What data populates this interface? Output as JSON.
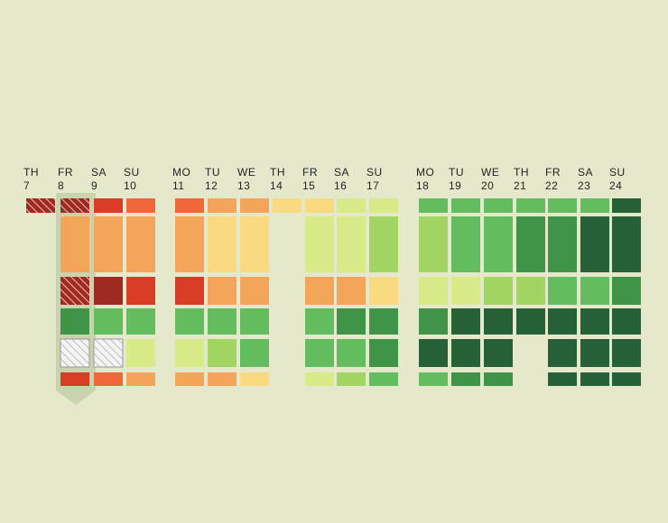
{
  "chart_data": {
    "type": "heatmap",
    "selected_day": "FR 8",
    "days": [
      {
        "dow": "TH",
        "num": "7"
      },
      {
        "dow": "FR",
        "num": "8"
      },
      {
        "dow": "SA",
        "num": "9"
      },
      {
        "dow": "SU",
        "num": "10"
      },
      {
        "dow": "MO",
        "num": "11"
      },
      {
        "dow": "TU",
        "num": "12"
      },
      {
        "dow": "WE",
        "num": "13"
      },
      {
        "dow": "TH",
        "num": "14"
      },
      {
        "dow": "FR",
        "num": "15"
      },
      {
        "dow": "SA",
        "num": "16"
      },
      {
        "dow": "SU",
        "num": "17"
      },
      {
        "dow": "MO",
        "num": "18"
      },
      {
        "dow": "TU",
        "num": "19"
      },
      {
        "dow": "WE",
        "num": "20"
      },
      {
        "dow": "TH",
        "num": "21"
      },
      {
        "dow": "FR",
        "num": "22"
      },
      {
        "dow": "SA",
        "num": "23"
      },
      {
        "dow": "SU",
        "num": "24"
      }
    ],
    "rows": 6,
    "levels": {
      "hatched-red": "#9e2a22",
      "1": "#9e2a22",
      "2": "#d93c25",
      "3": "#f0683a",
      "4": "#f5a55a",
      "5": "#fbd980",
      "6": "#d9ea88",
      "7": "#a1d665",
      "8": "#63bd5e",
      "9": "#3f9447",
      "10": "#276138",
      "hatched-grey": "#f2f2f2"
    },
    "values": [
      [
        "hatched-red",
        "hatched-red",
        2,
        3,
        3,
        4,
        4,
        5,
        5,
        6,
        6,
        8,
        8,
        8,
        8,
        8,
        8,
        10
      ],
      [
        null,
        4,
        4,
        4,
        4,
        5,
        5,
        null,
        6,
        6,
        7,
        7,
        8,
        8,
        9,
        9,
        10,
        10
      ],
      [
        null,
        "hatched-red",
        1,
        2,
        2,
        4,
        4,
        null,
        4,
        4,
        5,
        6,
        6,
        7,
        7,
        8,
        8,
        9
      ],
      [
        null,
        9,
        8,
        8,
        8,
        8,
        8,
        null,
        8,
        9,
        9,
        9,
        10,
        10,
        10,
        10,
        10,
        10
      ],
      [
        null,
        "hatched-grey",
        "hatched-grey",
        6,
        6,
        7,
        8,
        null,
        8,
        8,
        9,
        10,
        10,
        10,
        null,
        10,
        10,
        10
      ],
      [
        null,
        2,
        3,
        4,
        4,
        4,
        5,
        null,
        6,
        7,
        8,
        8,
        9,
        9,
        null,
        10,
        10,
        10
      ]
    ]
  }
}
